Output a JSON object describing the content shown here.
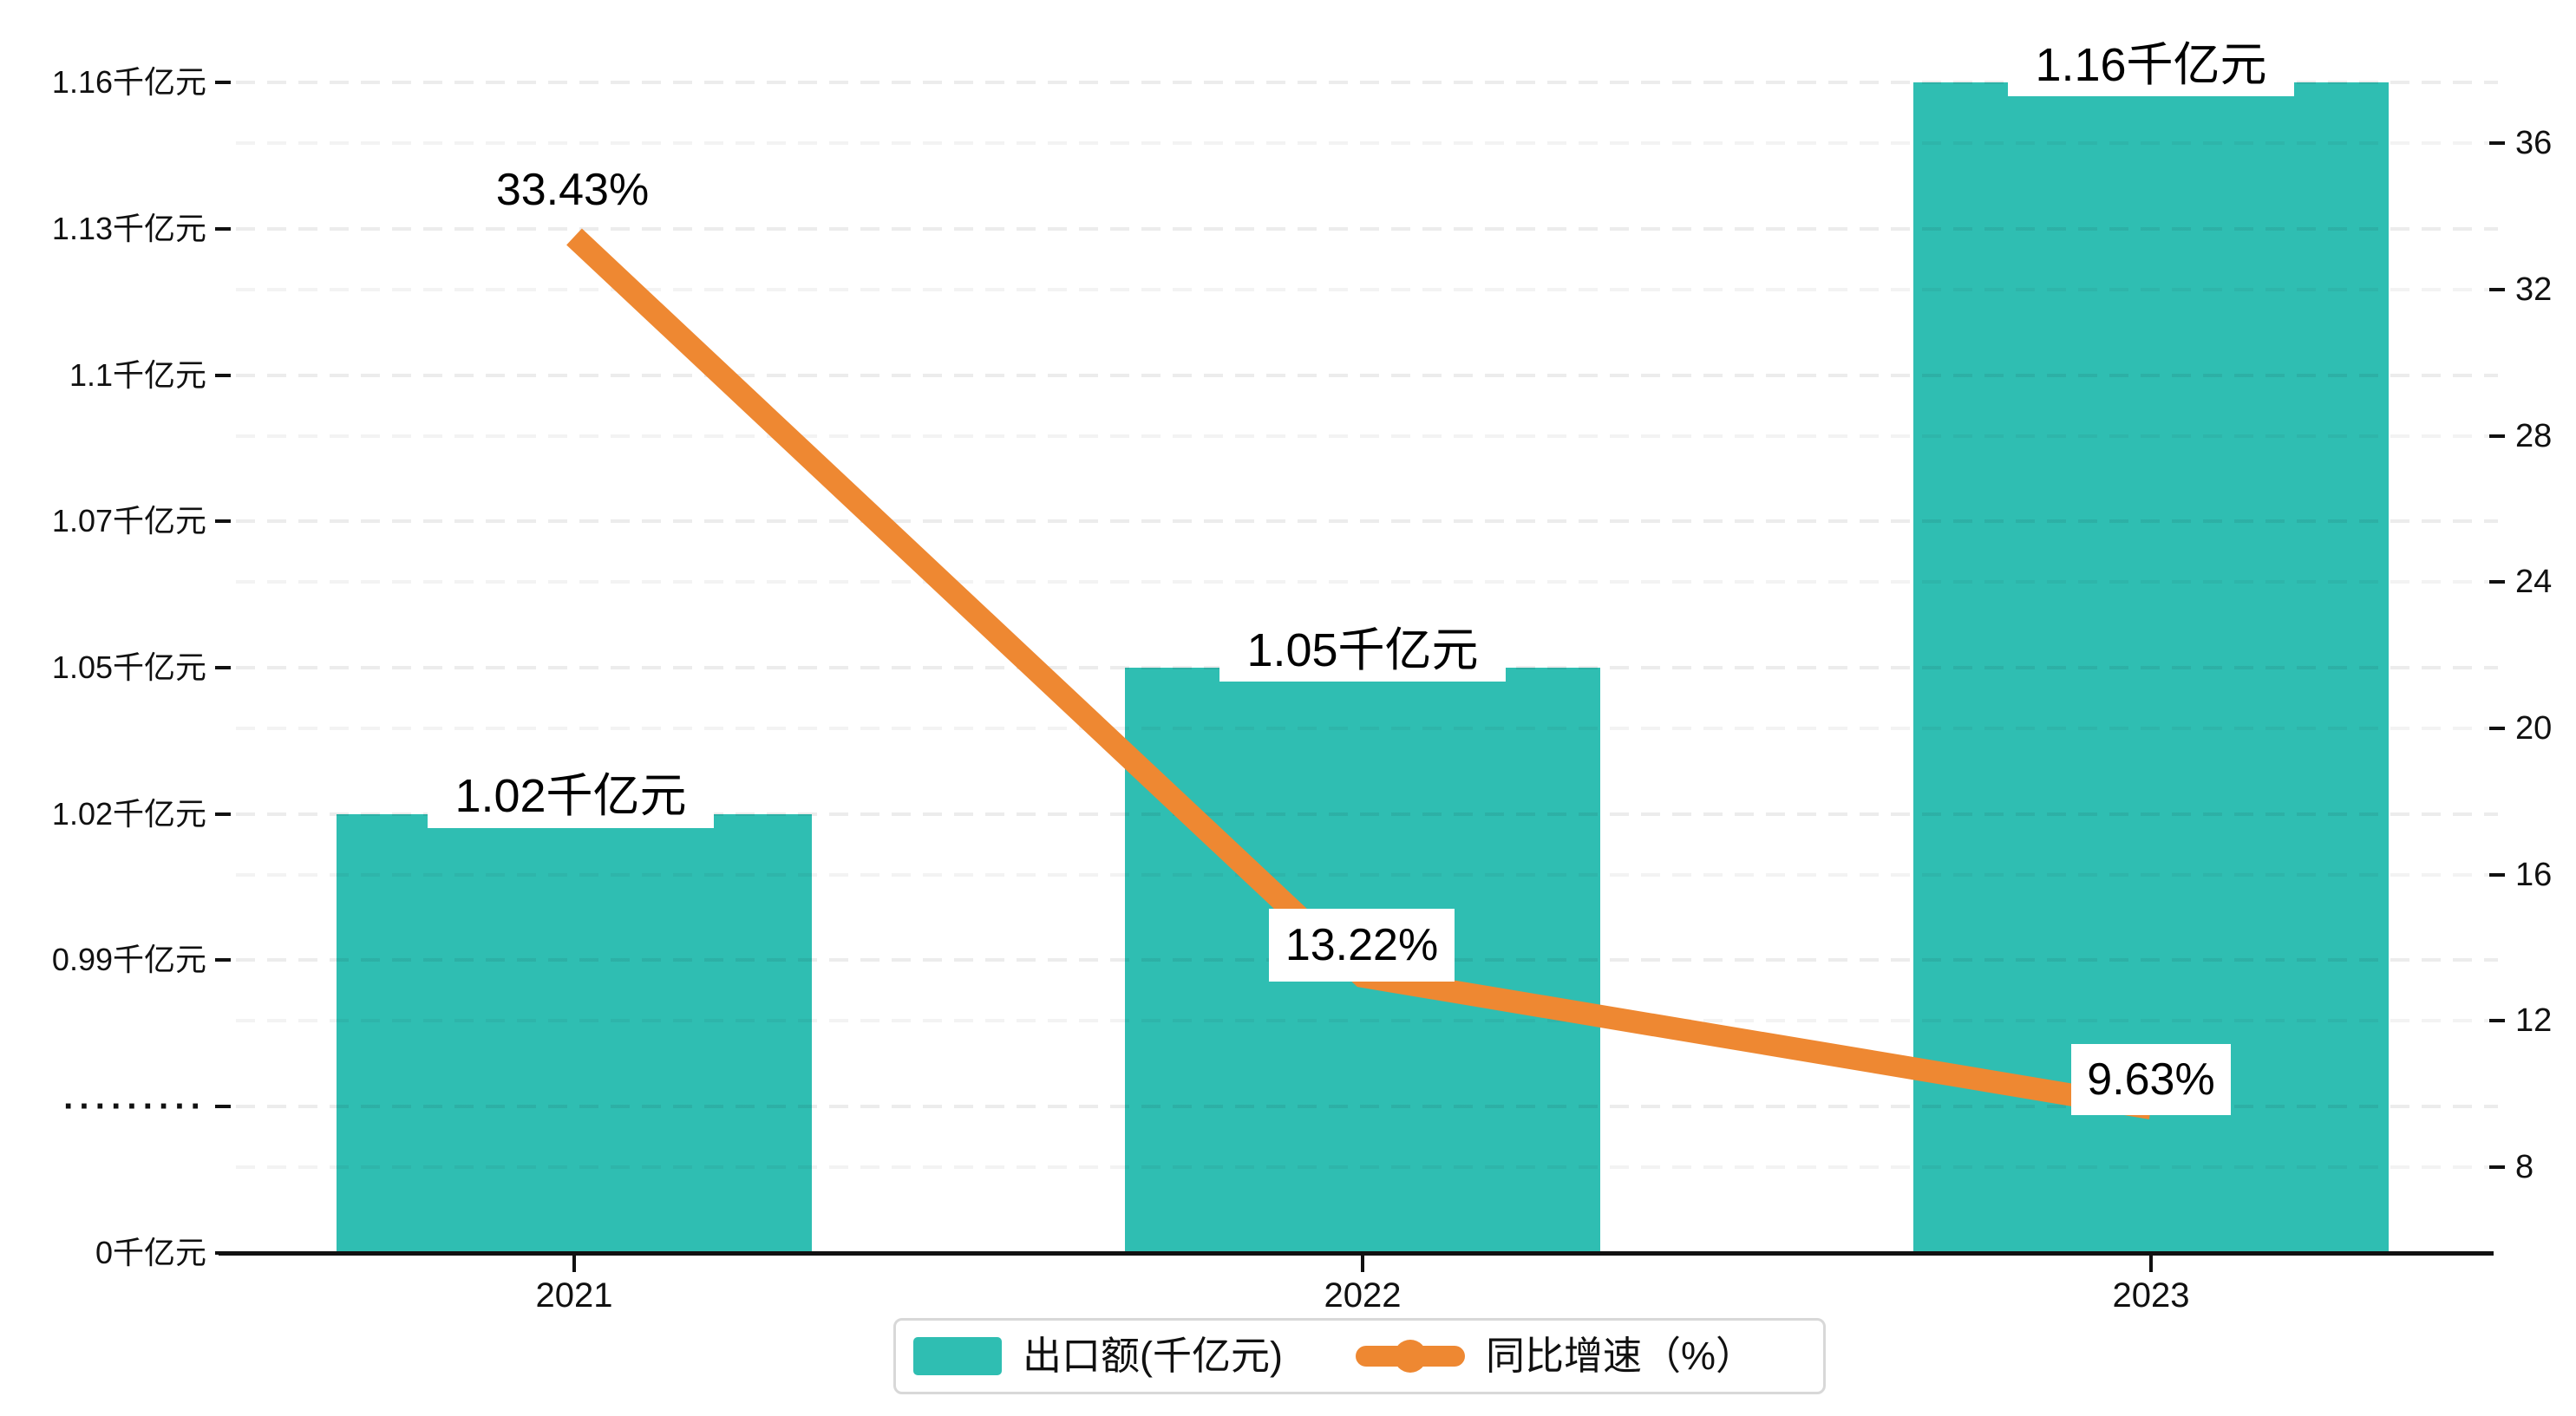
{
  "chart_data": {
    "type": "bar",
    "subtype": "combo-bar-line-dual-axis",
    "categories": [
      "2021",
      "2022",
      "2023"
    ],
    "series": [
      {
        "name": "出口额(千亿元)",
        "type": "bar",
        "axis": "left",
        "unit": "千亿元",
        "values": [
          1.02,
          1.05,
          1.16
        ],
        "data_labels": [
          "1.02千亿元",
          "1.05千亿元",
          "1.16千亿元"
        ],
        "color": "#2fbeb2"
      },
      {
        "name": "同比增速（%）",
        "type": "line",
        "axis": "right",
        "unit": "%",
        "values": [
          33.43,
          13.22,
          9.63
        ],
        "data_labels": [
          "33.43%",
          "13.22%",
          "9.63%"
        ],
        "color": "#ee8832"
      }
    ],
    "left_axis": {
      "labels": [
        "1.16千亿元",
        "1.13千亿元",
        "1.1千亿元",
        "1.07千亿元",
        "1.05千亿元",
        "1.02千亿元",
        "0.99千亿元",
        "·········",
        "0千亿元"
      ],
      "axis_break_marker": "·········",
      "axis_break_index": 7
    },
    "right_axis": {
      "labels": [
        "36",
        "32",
        "28",
        "24",
        "20",
        "16",
        "12",
        "8"
      ],
      "range_hint": [
        8,
        36
      ]
    },
    "grid": {
      "on": true,
      "style": "dashed"
    },
    "legend": {
      "position": "bottom-center",
      "items": [
        {
          "label": "出口额(千亿元)",
          "marker": "square",
          "color": "#2fbeb2"
        },
        {
          "label": "同比增速（%）",
          "marker": "line-dot",
          "color": "#ee8832"
        }
      ]
    }
  },
  "colors": {
    "background": "#ffffff",
    "bar": "#2fbeb2",
    "line": "#ee8832",
    "axis": "#111111",
    "text": "#111111",
    "grid_left": "rgba(17,17,17,0.08)",
    "grid_right": "rgba(17,17,17,0.05)",
    "legend_border": "#d8d8d8",
    "label_background": "#ffffff"
  }
}
